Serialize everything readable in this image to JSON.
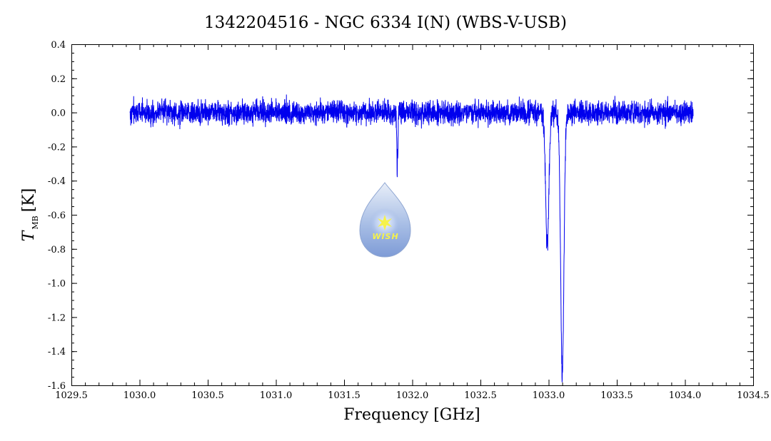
{
  "chart_data": {
    "type": "line",
    "title": "1342204516 - NGC 6334 I(N) (WBS-V-USB)",
    "xlabel": "Frequency [GHz]",
    "ylabel_main": "T",
    "ylabel_sub": "MB",
    "ylabel_unit": "[K]",
    "xlim": [
      1029.5,
      1034.5
    ],
    "ylim": [
      -1.6,
      0.4
    ],
    "xticks": [
      1029.5,
      1030.0,
      1030.5,
      1031.0,
      1031.5,
      1032.0,
      1032.5,
      1033.0,
      1033.5,
      1034.0,
      1034.5
    ],
    "xtick_labels": [
      "1029.5",
      "1030.0",
      "1030.5",
      "1031.0",
      "1031.5",
      "1032.0",
      "1032.5",
      "1033.0",
      "1033.5",
      "1034.0",
      "1034.5"
    ],
    "yticks": [
      0.4,
      0.2,
      0.0,
      -0.2,
      -0.4,
      -0.6,
      -0.8,
      -1.0,
      -1.2,
      -1.4,
      -1.6
    ],
    "ytick_labels": [
      "0.4",
      "0.2",
      "0.0",
      "-0.2",
      "-0.4",
      "-0.6",
      "-0.8",
      "-1.0",
      "-1.2",
      "-1.4",
      "-1.6"
    ],
    "grid": false,
    "legend": "none",
    "series_color": "#0000ee",
    "series": [
      {
        "x_start": 1029.93,
        "x_end": 1034.06,
        "baseline": 0.0,
        "noise_rms": 0.055,
        "features": [
          {
            "center": 1031.89,
            "depth": -0.31,
            "width": 0.004
          },
          {
            "center": 1032.99,
            "depth": -0.78,
            "width": 0.012
          },
          {
            "center": 1033.1,
            "depth": -1.54,
            "width": 0.012
          }
        ]
      }
    ],
    "logo": {
      "label": "WISH",
      "icon": "water-drop-logo"
    }
  }
}
